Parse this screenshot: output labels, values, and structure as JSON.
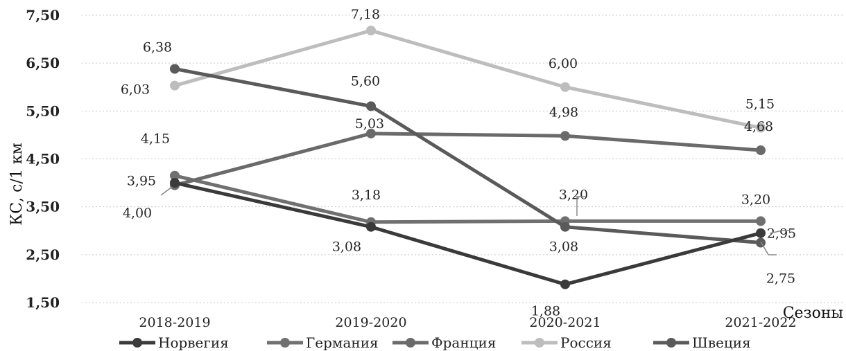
{
  "chart_data": {
    "type": "line",
    "title": "",
    "ylabel": "КС, с/1 км",
    "xlabel": "Сезоны",
    "ylim": [
      1.5,
      7.5
    ],
    "yticks": [
      "1,50",
      "2,50",
      "3,50",
      "4,50",
      "5,50",
      "6,50",
      "7,50"
    ],
    "ytick_values": [
      1.5,
      2.5,
      3.5,
      4.5,
      5.5,
      6.5,
      7.5
    ],
    "categories": [
      "2018-2019",
      "2019-2020",
      "2020-2021",
      "2021-2022"
    ],
    "grid": true,
    "legend_position": "bottom",
    "series": [
      {
        "name": "Норвегия",
        "color": "#3a3a3a",
        "values": [
          4.0,
          3.08,
          1.88,
          2.95
        ],
        "labels": [
          "4,00",
          "3,08",
          "1,88",
          "2,95"
        ]
      },
      {
        "name": "Германия",
        "color": "#707070",
        "values": [
          4.15,
          3.18,
          3.2,
          3.2
        ],
        "labels": [
          "4,15",
          "3,18",
          "3,20",
          "3,20"
        ]
      },
      {
        "name": "Франция",
        "color": "#6a6a6a",
        "values": [
          3.95,
          5.03,
          4.98,
          4.68
        ],
        "labels": [
          "3,95",
          "5,03",
          "4,98",
          "4,68"
        ]
      },
      {
        "name": "Россия",
        "color": "#bdbdbd",
        "values": [
          6.03,
          7.18,
          6.0,
          5.15
        ],
        "labels": [
          "6,03",
          "7,18",
          "6,00",
          "5,15"
        ]
      },
      {
        "name": "Швеция",
        "color": "#5a5a5a",
        "values": [
          6.38,
          5.6,
          3.08,
          2.75
        ],
        "labels": [
          "6,38",
          "5,60",
          "3,08",
          "2,75"
        ]
      }
    ]
  }
}
